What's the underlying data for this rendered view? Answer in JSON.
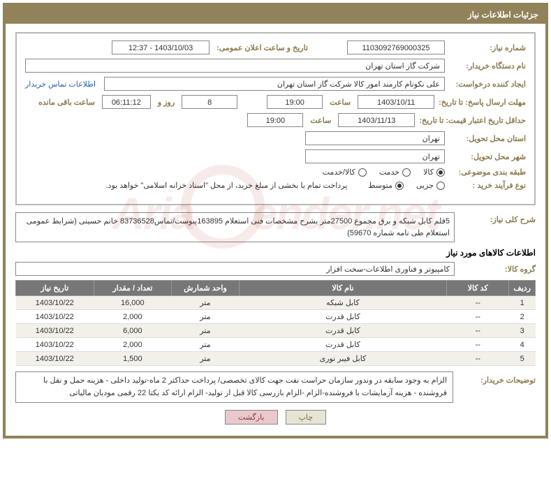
{
  "panel_title": "جزئیات اطلاعات نیاز",
  "labels": {
    "need_no": "شماره نیاز:",
    "announce_dt": "تاریخ و ساعت اعلان عمومی:",
    "buyer_org": "نام دستگاه خریدار:",
    "requester": "ایجاد کننده درخواست:",
    "contact_link": "اطلاعات تماس خریدار",
    "resp_deadline": "مهلت ارسال پاسخ: تا تاریخ:",
    "hour": "ساعت",
    "days_and": "روز و",
    "time_left": "ساعت باقی مانده",
    "price_valid": "حداقل تاریخ اعتبار قیمت: تا تاریخ:",
    "province": "استان محل تحویل:",
    "city": "شهر محل تحویل:",
    "subject_class": "طبقه بندی موضوعی:",
    "purchase_process": "نوع فرآیند خرید :",
    "process_note": "پرداخت تمام یا بخشی از مبلغ خرید، از محل \"اسناد خزانه اسلامی\" خواهد بود.",
    "overall_desc": "شرح کلی نیاز:",
    "goods_info": "اطلاعات کالاهای مورد نیاز",
    "goods_group": "گروه کالا:",
    "buyer_notes": "توضیحات خریدار:"
  },
  "fields": {
    "need_no": "1103092769000325",
    "announce_dt": "1403/10/03 - 12:37",
    "buyer_org": "شرکت گاز استان تهران",
    "requester": "علی نکونام کارمند امور کالا شرکت گاز استان تهران",
    "resp_date": "1403/10/11",
    "resp_time": "19:00",
    "days_left": "8",
    "countdown": "06:11:12",
    "price_valid_date": "1403/11/13",
    "price_valid_time": "19:00",
    "province": "تهران",
    "city": "تهران",
    "overall_desc": "5قلم کابل شبکه و برق مجموع 27500متر بشرح مشخصات فنی استعلام 163895پیوست/تماس83736528 خانم حسینی (شرایط عمومی استعلام طی نامه شماره 59670)",
    "goods_group": "کامپیوتر و فناوری اطلاعات-سخت افزار",
    "buyer_notes": "الزام به وجود سابقه در وندور سازمان حراست نفت جهت کالای تخصصی/ پرداخت حداکثر 2 ماه-تولید داخلی - هزینه حمل و نقل با فروشنده - هزینه آزمایشات با فروشنده-الزام -الزام بازرسی کالا قبل از تولید- الزام ارائه کد یکتا 22 رقمی مودیان مالیاتی"
  },
  "radios_subject": [
    {
      "label": "کالا",
      "checked": true
    },
    {
      "label": "خدمت",
      "checked": false
    },
    {
      "label": "کالا/خدمت",
      "checked": false
    }
  ],
  "radios_process": [
    {
      "label": "جزیی",
      "checked": false
    },
    {
      "label": "متوسط",
      "checked": true
    }
  ],
  "table": {
    "headers": [
      "ردیف",
      "کد کالا",
      "نام کالا",
      "واحد شمارش",
      "تعداد / مقدار",
      "تاریخ نیاز"
    ],
    "col_widths": [
      "5%",
      "12%",
      "40%",
      "13%",
      "15%",
      "15%"
    ],
    "rows": [
      [
        "1",
        "--",
        "کابل شبکه",
        "متر",
        "16,000",
        "1403/10/22"
      ],
      [
        "2",
        "--",
        "کابل قدرت",
        "متر",
        "2,000",
        "1403/10/22"
      ],
      [
        "3",
        "--",
        "کابل قدرت",
        "متر",
        "6,000",
        "1403/10/22"
      ],
      [
        "4",
        "--",
        "کابل قدرت",
        "متر",
        "2,000",
        "1403/10/22"
      ],
      [
        "5",
        "--",
        "کابل فیبر نوری",
        "متر",
        "1,500",
        "1403/10/22"
      ]
    ]
  },
  "buttons": {
    "print": "چاپ",
    "back": "بازگشت"
  },
  "colors": {
    "brand": "#918259",
    "label": "#8a7a4d",
    "th_bg": "#777777",
    "row_odd": "#f3f0e9"
  }
}
